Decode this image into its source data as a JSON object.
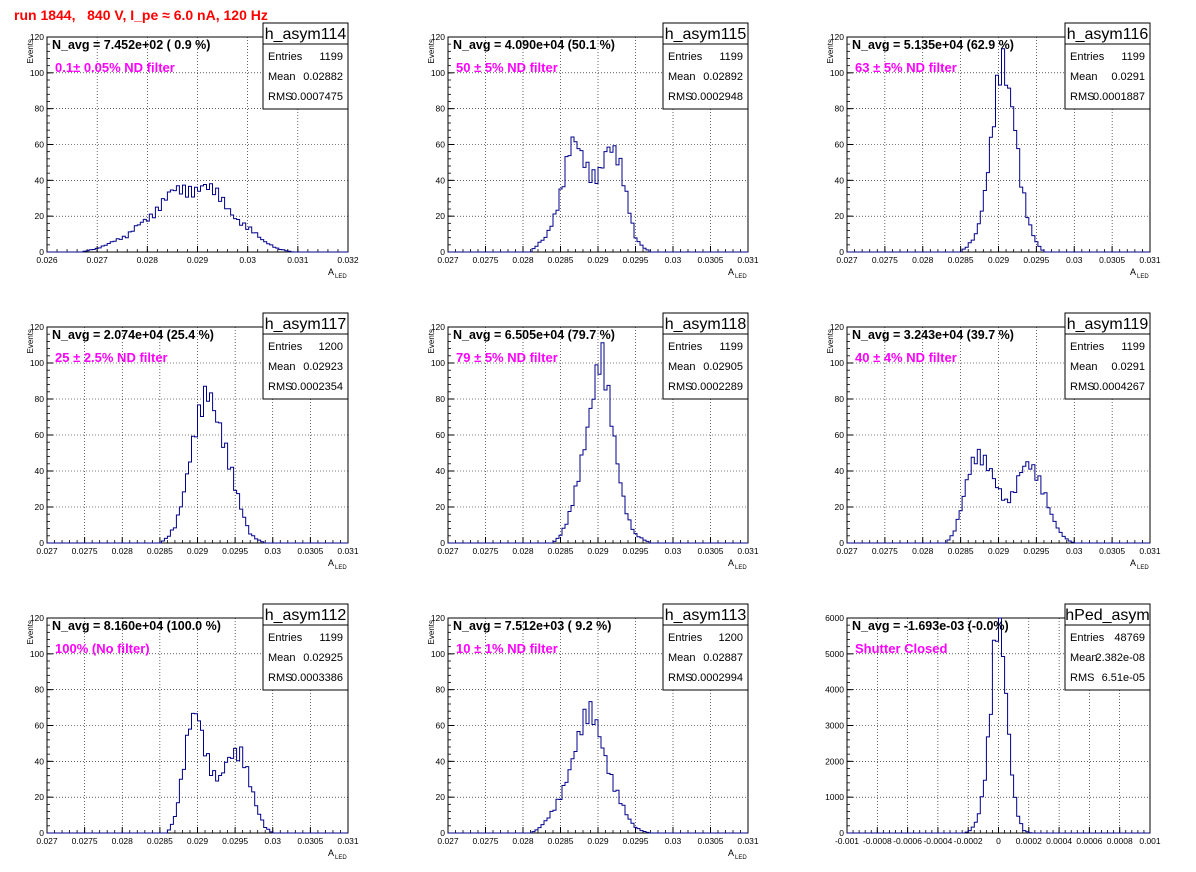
{
  "header": {
    "title": "run 1844,   840 V, I_pe ≈ 6.0 nA, 120 Hz"
  },
  "chart_data": [
    {
      "type": "bar",
      "name": "h_asym114",
      "navg_label": "N_avg = 7.452e+02 ( 0.9 %)",
      "filter_label": "0.1± 0.05% ND filter",
      "stats": {
        "Entries": "1199",
        "Mean": "0.02882",
        "RMS": "0.0007475"
      },
      "ylabel": "Events",
      "xlabel": "A",
      "xlabel_sub": "LED",
      "xlim": [
        0.026,
        0.032
      ],
      "ylim": [
        0,
        120
      ],
      "xticks": [
        "0.026",
        "0.027",
        "0.028",
        "0.029",
        "0.03",
        "0.031",
        "0.032"
      ],
      "yticks": [
        "0",
        "20",
        "40",
        "60",
        "80",
        "100",
        "120"
      ],
      "profile": [
        [
          0.0267,
          0
        ],
        [
          0.027,
          2
        ],
        [
          0.0273,
          6
        ],
        [
          0.0276,
          8
        ],
        [
          0.0279,
          18
        ],
        [
          0.0282,
          24
        ],
        [
          0.0285,
          32
        ],
        [
          0.0288,
          36
        ],
        [
          0.0291,
          38
        ],
        [
          0.0294,
          30
        ],
        [
          0.0297,
          22
        ],
        [
          0.03,
          14
        ],
        [
          0.0303,
          6
        ],
        [
          0.0306,
          2
        ],
        [
          0.0309,
          0
        ]
      ]
    },
    {
      "type": "bar",
      "name": "h_asym115",
      "navg_label": "N_avg = 4.090e+04 (50.1 %)",
      "filter_label": "50 ± 5% ND filter",
      "stats": {
        "Entries": "1199",
        "Mean": "0.02892",
        "RMS": "0.0002948"
      },
      "ylabel": "Events",
      "xlabel": "A",
      "xlabel_sub": "LED",
      "xlim": [
        0.027,
        0.031
      ],
      "ylim": [
        0,
        120
      ],
      "xticks": [
        "0.027",
        "0.0275",
        "0.028",
        "0.0285",
        "0.029",
        "0.0295",
        "0.03",
        "0.0305",
        "0.031"
      ],
      "yticks": [
        "0",
        "20",
        "40",
        "60",
        "80",
        "100",
        "120"
      ],
      "profile": [
        [
          0.0281,
          0
        ],
        [
          0.0283,
          8
        ],
        [
          0.0284,
          18
        ],
        [
          0.0285,
          35
        ],
        [
          0.0286,
          55
        ],
        [
          0.02865,
          60
        ],
        [
          0.0287,
          58
        ],
        [
          0.0288,
          48
        ],
        [
          0.0289,
          42
        ],
        [
          0.029,
          45
        ],
        [
          0.0291,
          60
        ],
        [
          0.02915,
          62
        ],
        [
          0.0292,
          58
        ],
        [
          0.0293,
          45
        ],
        [
          0.0294,
          25
        ],
        [
          0.0295,
          8
        ],
        [
          0.0296,
          3
        ],
        [
          0.0297,
          0
        ]
      ]
    },
    {
      "type": "bar",
      "name": "h_asym116",
      "navg_label": "N_avg = 5.135e+04 (62.9 %)",
      "filter_label": "63 ± 5% ND filter",
      "stats": {
        "Entries": "1199",
        "Mean": "0.0291",
        "RMS": "0.0001887"
      },
      "ylabel": "Events",
      "xlabel": "A",
      "xlabel_sub": "LED",
      "xlim": [
        0.027,
        0.031
      ],
      "ylim": [
        0,
        120
      ],
      "xticks": [
        "0.027",
        "0.0275",
        "0.028",
        "0.0285",
        "0.029",
        "0.0295",
        "0.03",
        "0.0305",
        "0.031"
      ],
      "yticks": [
        "0",
        "20",
        "40",
        "60",
        "80",
        "100",
        "120"
      ],
      "profile": [
        [
          0.0285,
          0
        ],
        [
          0.0286,
          4
        ],
        [
          0.0287,
          10
        ],
        [
          0.0288,
          25
        ],
        [
          0.0289,
          55
        ],
        [
          0.029,
          95
        ],
        [
          0.02905,
          110
        ],
        [
          0.0291,
          105
        ],
        [
          0.0292,
          85
        ],
        [
          0.0293,
          40
        ],
        [
          0.0294,
          15
        ],
        [
          0.0295,
          5
        ],
        [
          0.0296,
          0
        ]
      ]
    },
    {
      "type": "bar",
      "name": "h_asym117",
      "navg_label": "N_avg = 2.074e+04 (25.4 %)",
      "filter_label": "25 ± 2.5% ND filter",
      "stats": {
        "Entries": "1200",
        "Mean": "0.02923",
        "RMS": "0.0002354"
      },
      "ylabel": "Events",
      "xlabel": "A",
      "xlabel_sub": "LED",
      "xlim": [
        0.027,
        0.031
      ],
      "ylim": [
        0,
        120
      ],
      "xticks": [
        "0.027",
        "0.0275",
        "0.028",
        "0.0285",
        "0.029",
        "0.0295",
        "0.03",
        "0.0305",
        "0.031"
      ],
      "yticks": [
        "0",
        "20",
        "40",
        "60",
        "80",
        "100",
        "120"
      ],
      "profile": [
        [
          0.0285,
          0
        ],
        [
          0.0286,
          3
        ],
        [
          0.0287,
          10
        ],
        [
          0.0288,
          25
        ],
        [
          0.0289,
          45
        ],
        [
          0.029,
          62
        ],
        [
          0.0291,
          78
        ],
        [
          0.02915,
          85
        ],
        [
          0.0292,
          82
        ],
        [
          0.0293,
          70
        ],
        [
          0.0294,
          50
        ],
        [
          0.0295,
          30
        ],
        [
          0.0296,
          15
        ],
        [
          0.0297,
          5
        ],
        [
          0.0298,
          2
        ],
        [
          0.0299,
          0
        ]
      ]
    },
    {
      "type": "bar",
      "name": "h_asym118",
      "navg_label": "N_avg = 6.505e+04 (79.7 %)",
      "filter_label": "79 ± 5% ND filter",
      "stats": {
        "Entries": "1199",
        "Mean": "0.02905",
        "RMS": "0.0002289"
      },
      "ylabel": "Events",
      "xlabel": "A",
      "xlabel_sub": "LED",
      "xlim": [
        0.027,
        0.031
      ],
      "ylim": [
        0,
        120
      ],
      "xticks": [
        "0.027",
        "0.0275",
        "0.028",
        "0.0285",
        "0.029",
        "0.0295",
        "0.03",
        "0.0305",
        "0.031"
      ],
      "yticks": [
        "0",
        "20",
        "40",
        "60",
        "80",
        "100",
        "120"
      ],
      "profile": [
        [
          0.0284,
          0
        ],
        [
          0.0285,
          4
        ],
        [
          0.0286,
          12
        ],
        [
          0.0287,
          30
        ],
        [
          0.0288,
          55
        ],
        [
          0.0289,
          78
        ],
        [
          0.029,
          95
        ],
        [
          0.02905,
          98
        ],
        [
          0.0291,
          85
        ],
        [
          0.0292,
          60
        ],
        [
          0.0293,
          35
        ],
        [
          0.0294,
          15
        ],
        [
          0.0295,
          5
        ],
        [
          0.0296,
          2
        ],
        [
          0.0297,
          0
        ]
      ]
    },
    {
      "type": "bar",
      "name": "h_asym119",
      "navg_label": "N_avg = 3.243e+04 (39.7 %)",
      "filter_label": "40 ± 4% ND filter",
      "stats": {
        "Entries": "1199",
        "Mean": "0.0291",
        "RMS": "0.0004267"
      },
      "ylabel": "Events",
      "xlabel": "A",
      "xlabel_sub": "LED",
      "xlim": [
        0.027,
        0.031
      ],
      "ylim": [
        0,
        120
      ],
      "xticks": [
        "0.027",
        "0.0275",
        "0.028",
        "0.0285",
        "0.029",
        "0.0295",
        "0.03",
        "0.0305",
        "0.031"
      ],
      "yticks": [
        "0",
        "20",
        "40",
        "60",
        "80",
        "100",
        "120"
      ],
      "profile": [
        [
          0.0283,
          0
        ],
        [
          0.0284,
          5
        ],
        [
          0.0285,
          18
        ],
        [
          0.0286,
          35
        ],
        [
          0.0287,
          45
        ],
        [
          0.0288,
          48
        ],
        [
          0.0289,
          44
        ],
        [
          0.029,
          32
        ],
        [
          0.0291,
          22
        ],
        [
          0.0292,
          25
        ],
        [
          0.0293,
          38
        ],
        [
          0.0294,
          46
        ],
        [
          0.0295,
          42
        ],
        [
          0.0296,
          30
        ],
        [
          0.0297,
          15
        ],
        [
          0.0298,
          6
        ],
        [
          0.0299,
          2
        ],
        [
          0.03,
          0
        ]
      ]
    },
    {
      "type": "bar",
      "name": "h_asym112",
      "navg_label": "N_avg = 8.160e+04 (100.0 %)",
      "filter_label": "100% (No filter)",
      "stats": {
        "Entries": "1199",
        "Mean": "0.02925",
        "RMS": "0.0003386"
      },
      "ylabel": "Events",
      "xlabel": "A",
      "xlabel_sub": "LED",
      "xlim": [
        0.027,
        0.031
      ],
      "ylim": [
        0,
        120
      ],
      "xticks": [
        "0.027",
        "0.0275",
        "0.028",
        "0.0285",
        "0.029",
        "0.0295",
        "0.03",
        "0.0305",
        "0.031"
      ],
      "yticks": [
        "0",
        "20",
        "40",
        "60",
        "80",
        "100",
        "120"
      ],
      "profile": [
        [
          0.0286,
          0
        ],
        [
          0.0287,
          8
        ],
        [
          0.0288,
          30
        ],
        [
          0.0289,
          62
        ],
        [
          0.029,
          75
        ],
        [
          0.0291,
          50
        ],
        [
          0.0292,
          32
        ],
        [
          0.0293,
          28
        ],
        [
          0.0294,
          38
        ],
        [
          0.0295,
          45
        ],
        [
          0.0296,
          48
        ],
        [
          0.0297,
          30
        ],
        [
          0.0298,
          12
        ],
        [
          0.0299,
          3
        ],
        [
          0.03,
          0
        ]
      ]
    },
    {
      "type": "bar",
      "name": "h_asym113",
      "navg_label": "N_avg = 7.512e+03 ( 9.2 %)",
      "filter_label": "10 ± 1% ND filter",
      "stats": {
        "Entries": "1200",
        "Mean": "0.02887",
        "RMS": "0.0002994"
      },
      "ylabel": "Events",
      "xlabel": "A",
      "xlabel_sub": "LED",
      "xlim": [
        0.027,
        0.031
      ],
      "ylim": [
        0,
        120
      ],
      "xticks": [
        "0.027",
        "0.0275",
        "0.028",
        "0.0285",
        "0.029",
        "0.0295",
        "0.03",
        "0.0305",
        "0.031"
      ],
      "yticks": [
        "0",
        "20",
        "40",
        "60",
        "80",
        "100",
        "120"
      ],
      "profile": [
        [
          0.0281,
          0
        ],
        [
          0.0282,
          2
        ],
        [
          0.0283,
          6
        ],
        [
          0.0284,
          12
        ],
        [
          0.0285,
          22
        ],
        [
          0.0286,
          35
        ],
        [
          0.0287,
          48
        ],
        [
          0.0288,
          58
        ],
        [
          0.0289,
          63
        ],
        [
          0.029,
          58
        ],
        [
          0.0291,
          45
        ],
        [
          0.0292,
          30
        ],
        [
          0.0293,
          18
        ],
        [
          0.0294,
          8
        ],
        [
          0.0295,
          3
        ],
        [
          0.0296,
          1
        ],
        [
          0.0297,
          0
        ]
      ]
    },
    {
      "type": "bar",
      "name": "hPed_asym",
      "navg_label": "N_avg = -1.693e-03 (-0.0%)",
      "filter_label": "Shutter Closed",
      "stats": {
        "Entries": "48769",
        "Mean": "2.382e-08",
        "RMS": "6.51e-05"
      },
      "ylabel": "",
      "xlabel": "",
      "xlabel_sub": "",
      "xlim": [
        -0.001,
        0.001
      ],
      "ylim": [
        0,
        6000
      ],
      "xticks": [
        "-0.001",
        "-0.0008",
        "-0.0006",
        "-0.0004",
        "-0.0002",
        "0",
        "0.0002",
        "0.0004",
        "0.0006",
        "0.0008",
        "0.001"
      ],
      "yticks": [
        "0",
        "1000",
        "2000",
        "3000",
        "4000",
        "5000",
        "6000"
      ],
      "profile": [
        [
          -0.00022,
          0
        ],
        [
          -0.00018,
          100
        ],
        [
          -0.00014,
          400
        ],
        [
          -0.0001,
          1200
        ],
        [
          -6e-05,
          2800
        ],
        [
          -3e-05,
          4600
        ],
        [
          0.0,
          5600
        ],
        [
          2e-05,
          5300
        ],
        [
          5e-05,
          3800
        ],
        [
          8e-05,
          2200
        ],
        [
          0.00011,
          1000
        ],
        [
          0.00014,
          350
        ],
        [
          0.00017,
          80
        ],
        [
          0.0002,
          10
        ],
        [
          0.00023,
          0
        ]
      ]
    }
  ]
}
